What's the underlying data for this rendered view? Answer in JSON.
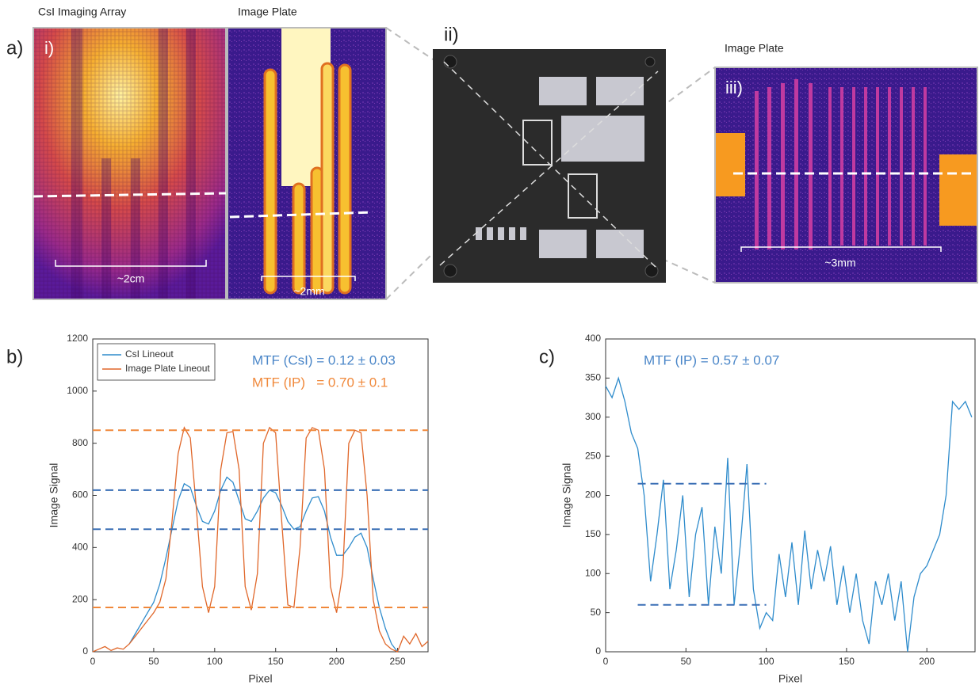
{
  "panel_a": {
    "label": "a)",
    "sublabel": "i)",
    "title_left": "CsI Imaging Array",
    "title_right": "Image Plate",
    "scale_left": "~2cm",
    "scale_right": "~2mm"
  },
  "panel_ii": {
    "label": "ii)"
  },
  "panel_iii": {
    "title": "Image Plate",
    "label": "iii)",
    "scale": "~3mm"
  },
  "chart_data": [
    {
      "type": "line",
      "panel_label": "b)",
      "x_label": "Pixel",
      "y_label": "Image Signal",
      "xlim": [
        0,
        275
      ],
      "xticks": [
        0,
        50,
        100,
        150,
        200,
        250
      ],
      "ylim": [
        0,
        1200
      ],
      "yticks": [
        0,
        200,
        400,
        600,
        800,
        1000,
        1200
      ],
      "legend": "top-left",
      "annotations": [
        {
          "text": "MTF (CsI) = 0.12 ± 0.03",
          "color": "#4a86c8"
        },
        {
          "text": "MTF (IP)   = 0.70 ± 0.1",
          "color": "#f0883a"
        }
      ],
      "reference_lines": [
        {
          "value": 850,
          "color": "#f0883a"
        },
        {
          "value": 620,
          "color": "#3a6fb5"
        },
        {
          "value": 470,
          "color": "#3a6fb5"
        },
        {
          "value": 170,
          "color": "#f0883a"
        }
      ],
      "series": [
        {
          "name": "CsI Lineout",
          "color": "#2f8ccc",
          "x": [
            30,
            35,
            40,
            45,
            50,
            55,
            60,
            65,
            70,
            75,
            80,
            85,
            90,
            95,
            100,
            105,
            110,
            115,
            120,
            125,
            130,
            135,
            140,
            145,
            150,
            155,
            160,
            165,
            170,
            175,
            180,
            185,
            190,
            195,
            200,
            205,
            210,
            215,
            220,
            225,
            230,
            235,
            240,
            245,
            250
          ],
          "values": [
            30,
            70,
            110,
            150,
            190,
            260,
            360,
            470,
            580,
            645,
            630,
            560,
            500,
            490,
            540,
            620,
            670,
            650,
            580,
            510,
            500,
            540,
            590,
            620,
            610,
            560,
            500,
            470,
            480,
            540,
            590,
            595,
            540,
            440,
            370,
            370,
            400,
            440,
            455,
            400,
            280,
            170,
            90,
            30,
            0
          ]
        },
        {
          "name": "Image Plate Lineout",
          "color": "#e0672a",
          "x": [
            0,
            5,
            10,
            15,
            20,
            25,
            30,
            35,
            40,
            45,
            50,
            55,
            60,
            65,
            70,
            75,
            80,
            85,
            90,
            95,
            100,
            105,
            110,
            115,
            120,
            125,
            130,
            135,
            140,
            145,
            150,
            155,
            160,
            165,
            170,
            175,
            180,
            185,
            190,
            195,
            200,
            205,
            210,
            215,
            220,
            225,
            230,
            235,
            240,
            245,
            250,
            255,
            260,
            265,
            270,
            275
          ],
          "values": [
            0,
            10,
            20,
            5,
            15,
            10,
            30,
            60,
            90,
            120,
            150,
            190,
            280,
            500,
            760,
            860,
            820,
            550,
            250,
            150,
            250,
            700,
            840,
            845,
            700,
            250,
            160,
            300,
            800,
            860,
            840,
            500,
            180,
            170,
            400,
            820,
            860,
            850,
            700,
            250,
            150,
            300,
            800,
            850,
            840,
            600,
            200,
            80,
            30,
            10,
            0,
            60,
            30,
            70,
            20,
            40
          ]
        }
      ]
    },
    {
      "type": "line",
      "panel_label": "c)",
      "x_label": "Pixel",
      "y_label": "Image Signal",
      "xlim": [
        0,
        230
      ],
      "xticks": [
        0,
        50,
        100,
        150,
        200
      ],
      "ylim": [
        0,
        400
      ],
      "yticks": [
        0,
        50,
        100,
        150,
        200,
        250,
        300,
        350,
        400
      ],
      "annotations": [
        {
          "text": "MTF (IP) = 0.57 ± 0.07",
          "color": "#4a86c8"
        }
      ],
      "reference_lines": [
        {
          "value": 215,
          "x": [
            20,
            100
          ],
          "color": "#3a6fb5"
        },
        {
          "value": 60,
          "x": [
            20,
            100
          ],
          "color": "#3a6fb5"
        }
      ],
      "series": [
        {
          "color": "#2f8ccc",
          "x": [
            0,
            4,
            8,
            12,
            16,
            20,
            24,
            28,
            32,
            36,
            40,
            44,
            48,
            52,
            56,
            60,
            64,
            68,
            72,
            76,
            80,
            84,
            88,
            92,
            96,
            100,
            104,
            108,
            112,
            116,
            120,
            124,
            128,
            132,
            136,
            140,
            144,
            148,
            152,
            156,
            160,
            164,
            168,
            172,
            176,
            180,
            184,
            188,
            192,
            196,
            200,
            204,
            208,
            212,
            216,
            220,
            224,
            228
          ],
          "values": [
            340,
            325,
            350,
            320,
            280,
            260,
            200,
            90,
            150,
            220,
            80,
            130,
            200,
            70,
            150,
            185,
            60,
            160,
            100,
            248,
            60,
            140,
            240,
            80,
            30,
            50,
            40,
            125,
            70,
            140,
            60,
            155,
            80,
            130,
            90,
            135,
            60,
            110,
            50,
            100,
            40,
            10,
            90,
            60,
            100,
            40,
            90,
            0,
            70,
            100,
            110,
            130,
            150,
            200,
            320,
            310,
            320,
            300
          ]
        }
      ]
    }
  ]
}
